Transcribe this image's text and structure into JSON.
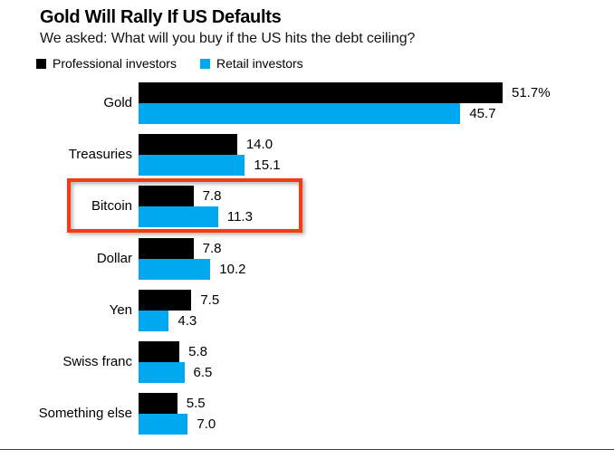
{
  "page": {
    "title": "Gold Will Rally If US Defaults",
    "subtitle": "We asked: What will you buy if the US hits the debt ceiling?"
  },
  "legend": {
    "items": [
      {
        "label": "Professional investors",
        "color": "#000000"
      },
      {
        "label": "Retail investors",
        "color": "#00a8f0"
      }
    ]
  },
  "chart_data": {
    "type": "bar",
    "orientation": "horizontal",
    "unit": "%",
    "title": "Gold Will Rally If US Defaults",
    "subtitle": "We asked: What will you buy if the US hits the debt ceiling?",
    "categories": [
      "Gold",
      "Treasuries",
      "Bitcoin",
      "Dollar",
      "Yen",
      "Swiss franc",
      "Something else"
    ],
    "series": [
      {
        "name": "Professional investors",
        "color": "#000000",
        "values": [
          51.7,
          14.0,
          7.8,
          7.8,
          7.5,
          5.8,
          5.5
        ],
        "value_labels": [
          "51.7%",
          "14.0",
          "7.8",
          "7.8",
          "7.5",
          "5.8",
          "5.5"
        ]
      },
      {
        "name": "Retail investors",
        "color": "#00a8f0",
        "values": [
          45.7,
          15.1,
          11.3,
          10.2,
          4.3,
          6.5,
          7.0
        ],
        "value_labels": [
          "45.7",
          "15.1",
          "11.3",
          "10.2",
          "4.3",
          "6.5",
          "7.0"
        ]
      }
    ],
    "xlim": [
      0,
      51.7
    ],
    "grid": false,
    "legend_position": "top",
    "value_labels_shown": true
  },
  "annotation": {
    "type": "highlight-box",
    "target_category": "Bitcoin",
    "color": "#f43b14"
  }
}
